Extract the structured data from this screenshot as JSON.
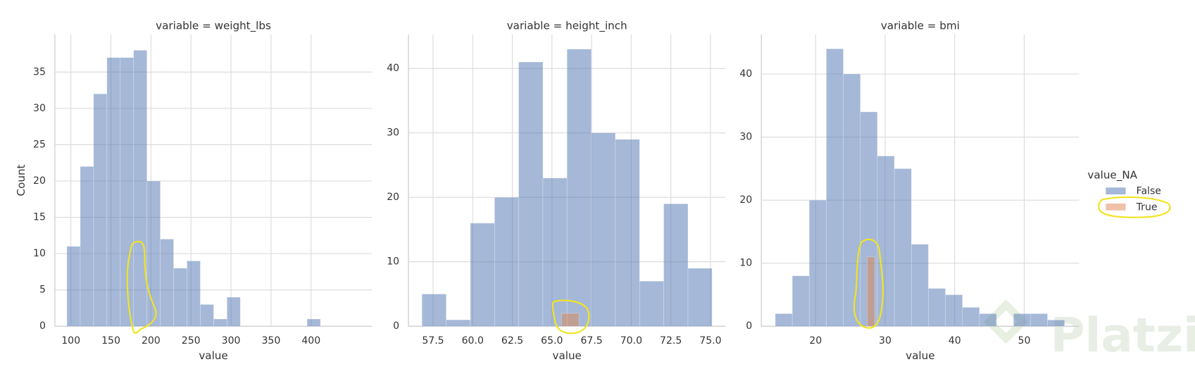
{
  "watermark": "Platzi",
  "chart_data": [
    {
      "type": "histogram",
      "title": "variable = weight_lbs",
      "x_label": "value",
      "y_label": "Count",
      "xlim": [
        80,
        476
      ],
      "ylim": [
        0,
        40.2
      ],
      "xticks": [
        100,
        150,
        200,
        250,
        300,
        350,
        400
      ],
      "yticks": [
        0,
        5,
        10,
        15,
        20,
        25,
        30,
        35
      ],
      "grid": true,
      "series": [
        {
          "color": "#4c72b0",
          "bins": [
            95,
            111.67,
            128.33,
            145,
            161.67,
            178.33,
            195,
            211.67,
            228.33,
            245,
            261.67,
            278.33,
            295,
            311.67,
            328.33,
            345,
            361.67,
            378.33,
            395,
            411.67
          ],
          "values": [
            11,
            22,
            32,
            37,
            37,
            38,
            20,
            12,
            8,
            9,
            3,
            1,
            4,
            0,
            0,
            0,
            0,
            0,
            1
          ]
        }
      ]
    },
    {
      "type": "histogram",
      "title": "variable = height_inch",
      "x_label": "value",
      "xlim": [
        55.95,
        75.95
      ],
      "ylim": [
        0,
        45.3
      ],
      "xticks": [
        57.5,
        {
          "value": 60,
          "label": "60.0"
        },
        62.5,
        {
          "value": 65,
          "label": "65.0"
        },
        67.5,
        {
          "value": 70,
          "label": "70.0"
        },
        72.5,
        {
          "value": 75,
          "label": "75.0"
        }
      ],
      "yticks": [
        0,
        10,
        20,
        30,
        40
      ],
      "grid": true,
      "series": [
        {
          "color": "#4c72b0",
          "bins": [
            56.8,
            58.33,
            59.85,
            61.38,
            62.9,
            64.43,
            65.95,
            67.48,
            69.0,
            70.53,
            72.05,
            73.58,
            75.1
          ],
          "values": [
            5,
            1,
            16,
            20,
            41,
            23,
            43,
            30,
            29,
            7,
            19,
            9
          ]
        },
        {
          "color": "#dd8452",
          "bins": [
            65.6,
            66.7
          ],
          "values": [
            2
          ]
        }
      ]
    },
    {
      "type": "histogram",
      "title": "variable = bmi",
      "x_label": "value",
      "xlim": [
        12.2,
        57.9
      ],
      "ylim": [
        0,
        46.3
      ],
      "xticks": [
        20,
        30,
        40,
        50
      ],
      "yticks": [
        0,
        10,
        20,
        30,
        40
      ],
      "grid": true,
      "legend_title": "value_NA",
      "legend": "right",
      "series": [
        {
          "name": "False",
          "color": "#4c72b0",
          "bins": [
            14.2,
            16.65,
            19.09,
            21.54,
            23.99,
            26.44,
            28.88,
            31.33,
            33.78,
            36.22,
            38.67,
            41.12,
            43.56,
            46.01,
            48.46,
            50.91,
            53.35,
            55.8
          ],
          "values": [
            2,
            8,
            20,
            44,
            40,
            34,
            27,
            25,
            13,
            6,
            5,
            3,
            2,
            0,
            2,
            2,
            1
          ]
        },
        {
          "name": "True",
          "color": "#dd8452",
          "bins": [
            27.4,
            28.5
          ],
          "values": [
            11
          ]
        }
      ]
    }
  ]
}
